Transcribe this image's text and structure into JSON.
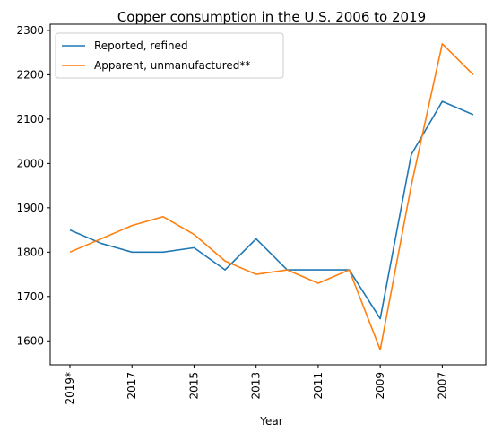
{
  "chart_data": {
    "type": "line",
    "title": "Copper consumption in the U.S. 2006 to 2019",
    "xlabel": "Year",
    "ylabel": "",
    "categories": [
      "2019*",
      "2018",
      "2017",
      "2016",
      "2015",
      "2014",
      "2013",
      "2012",
      "2011",
      "2010",
      "2009",
      "2008",
      "2007",
      "2006"
    ],
    "x_tick_labels": [
      "2019*",
      "2017",
      "2015",
      "2013",
      "2011",
      "2009",
      "2007"
    ],
    "y_ticks": [
      1600,
      1700,
      1800,
      1900,
      2000,
      2100,
      2200,
      2300
    ],
    "ylim": [
      1546,
      2314
    ],
    "grid": false,
    "legend_position": "upper-left",
    "series": [
      {
        "name": "Reported, refined",
        "color": "#1f77b4",
        "values": [
          1850,
          1820,
          1800,
          1800,
          1810,
          1760,
          1830,
          1760,
          1760,
          1760,
          1650,
          2020,
          2140,
          2110
        ]
      },
      {
        "name": "Apparent, unmanufactured**",
        "color": "#ff7f0e",
        "values": [
          1800,
          1830,
          1860,
          1880,
          1840,
          1780,
          1750,
          1760,
          1730,
          1760,
          1580,
          1950,
          2270,
          2200
        ]
      }
    ]
  }
}
